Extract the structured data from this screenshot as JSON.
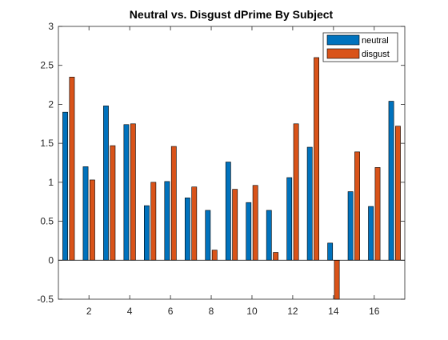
{
  "chart_data": {
    "type": "bar",
    "title": "Neutral vs. Disgust dPrime By Subject",
    "xlabel": "",
    "ylabel": "",
    "x": [
      1,
      2,
      3,
      4,
      5,
      6,
      7,
      8,
      9,
      10,
      11,
      12,
      13,
      14,
      15,
      16,
      17
    ],
    "xticks": [
      2,
      4,
      6,
      8,
      10,
      12,
      14,
      16
    ],
    "xlim": [
      0.5,
      17.5
    ],
    "ylim": [
      -0.5,
      3
    ],
    "yticks": [
      -0.5,
      0,
      0.5,
      1,
      1.5,
      2,
      2.5,
      3
    ],
    "grid": false,
    "legend_position": "top-right",
    "series": [
      {
        "name": "neutral",
        "color": "#0072BD",
        "values": [
          1.9,
          1.2,
          1.98,
          1.74,
          0.7,
          1.01,
          0.8,
          0.64,
          1.26,
          0.74,
          0.64,
          1.06,
          1.45,
          0.22,
          0.88,
          0.69,
          2.04
        ]
      },
      {
        "name": "disgust",
        "color": "#D95319",
        "values": [
          2.35,
          1.03,
          1.47,
          1.75,
          1.0,
          1.46,
          0.94,
          0.13,
          0.91,
          0.96,
          0.1,
          1.75,
          2.6,
          -0.51,
          1.39,
          1.19,
          1.72
        ]
      }
    ]
  }
}
